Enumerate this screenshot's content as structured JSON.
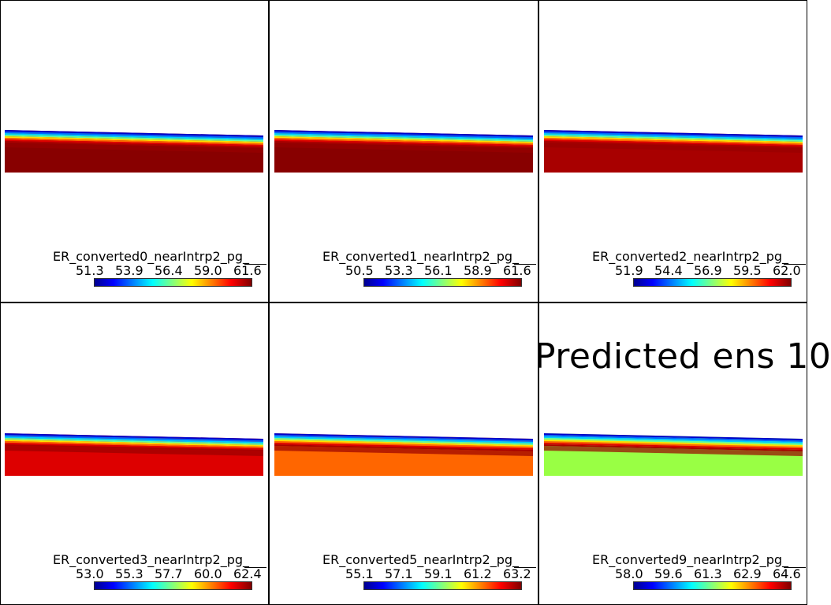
{
  "overlay_title": "Predicted ens 10",
  "panels": [
    {
      "title": "ER_converted0_nearIntrp2_pg_",
      "ticks": [
        "51.3",
        "53.9",
        "56.4",
        "59.0",
        "61.6"
      ],
      "body_color": "#880000"
    },
    {
      "title": "ER_converted1_nearIntrp2_pg_",
      "ticks": [
        "50.5",
        "53.3",
        "56.1",
        "58.9",
        "61.6"
      ],
      "body_color": "#880000"
    },
    {
      "title": "ER_converted2_nearIntrp2_pg_",
      "ticks": [
        "51.9",
        "54.4",
        "56.9",
        "59.5",
        "62.0"
      ],
      "body_color": "#a80000"
    },
    {
      "title": "ER_converted3_nearIntrp2_pg_",
      "ticks": [
        "53.0",
        "55.3",
        "57.7",
        "60.0",
        "62.4"
      ],
      "body_color": "#dd0000"
    },
    {
      "title": "ER_converted5_nearIntrp2_pg_",
      "ticks": [
        "55.1",
        "57.1",
        "59.1",
        "61.2",
        "63.2"
      ],
      "body_color": "#ff6600"
    },
    {
      "title": "ER_converted9_nearIntrp2_pg_",
      "ticks": [
        "58.0",
        "59.6",
        "61.3",
        "62.9",
        "64.6"
      ],
      "body_color": "#99ff44"
    }
  ]
}
